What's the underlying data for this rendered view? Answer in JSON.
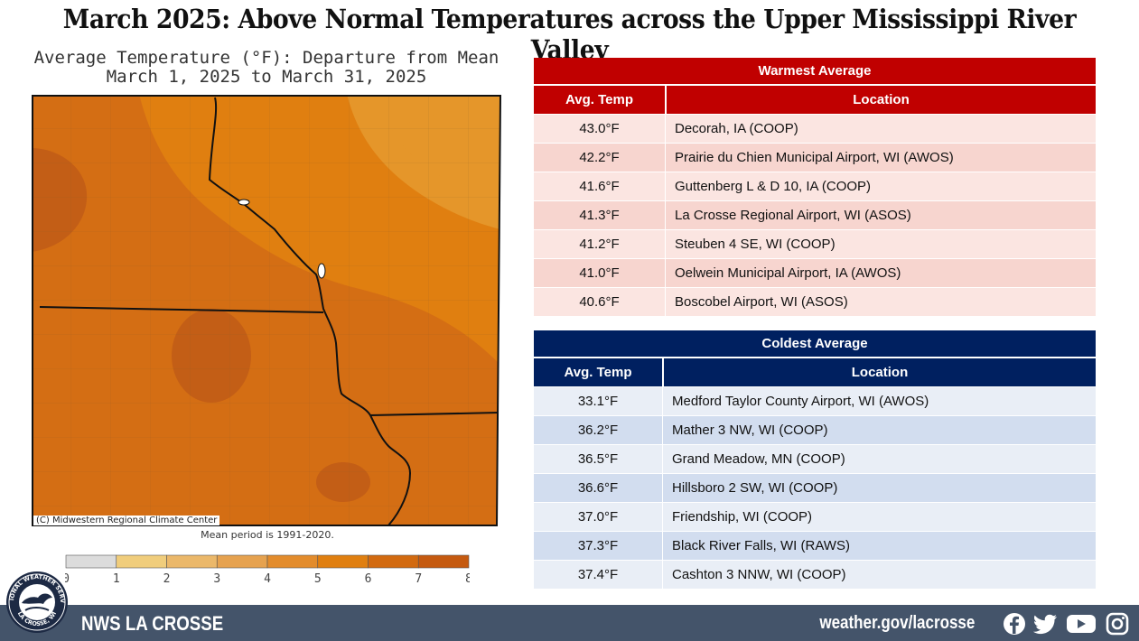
{
  "title": "March 2025:  Above Normal Temperatures across the Upper Mississippi River Valley",
  "map": {
    "title_line1": "Average Temperature (°F): Departure from Mean",
    "title_line2": "March 1, 2025 to March 31, 2025",
    "copyright": "(C) Midwestern Regional Climate Center",
    "mean_period": "Mean period is 1991-2020.",
    "legend": {
      "ticks": [
        "0",
        "1",
        "2",
        "3",
        "4",
        "5",
        "6",
        "7",
        "8"
      ],
      "colors": [
        "#dcdcdc",
        "#f0cd7c",
        "#ebb86a",
        "#e6a24f",
        "#e38c2c",
        "#e07f10",
        "#d26a10",
        "#c55a10"
      ]
    },
    "fill_colors": {
      "light": "#e5962a",
      "base": "#e07f10",
      "mid": "#d46e14",
      "dark": "#c35e16"
    }
  },
  "warmest": {
    "banner": "Warmest  Average",
    "col_temp": "Avg. Temp",
    "col_loc": "Location",
    "rows": [
      {
        "temp": "43.0°F",
        "loc": "Decorah, IA (COOP)"
      },
      {
        "temp": "42.2°F",
        "loc": "Prairie du Chien Municipal Airport, WI (AWOS)"
      },
      {
        "temp": "41.6°F",
        "loc": "Guttenberg L & D 10, IA (COOP)"
      },
      {
        "temp": "41.3°F",
        "loc": "La Crosse Regional Airport, WI (ASOS)"
      },
      {
        "temp": "41.2°F",
        "loc": "Steuben 4 SE, WI (COOP)"
      },
      {
        "temp": "41.0°F",
        "loc": "Oelwein Municipal Airport, IA (AWOS)"
      },
      {
        "temp": "40.6°F",
        "loc": "Boscobel Airport, WI (ASOS)"
      }
    ]
  },
  "coldest": {
    "banner": "Coldest Average",
    "col_temp": "Avg. Temp",
    "col_loc": "Location",
    "rows": [
      {
        "temp": "33.1°F",
        "loc": "Medford Taylor County Airport, WI (AWOS)"
      },
      {
        "temp": "36.2°F",
        "loc": "Mather 3 NW, WI (COOP)"
      },
      {
        "temp": "36.5°F",
        "loc": "Grand Meadow, MN (COOP)"
      },
      {
        "temp": "36.6°F",
        "loc": "Hillsboro 2 SW, WI (COOP)"
      },
      {
        "temp": "37.0°F",
        "loc": "Friendship, WI (COOP)"
      },
      {
        "temp": "37.3°F",
        "loc": "Black River Falls, WI (RAWS)"
      },
      {
        "temp": "37.4°F",
        "loc": "Cashton 3 NNW, WI (COOP)"
      }
    ]
  },
  "footer": {
    "office": "NWS LA CROSSE",
    "url": "weather.gov/lacrosse",
    "logo_text_top": "NATIONAL WEATHER SERVICE",
    "logo_text_bottom": "LA CROSSE, WI",
    "icons": [
      "facebook-icon",
      "twitter-icon",
      "youtube-icon",
      "instagram-icon"
    ]
  }
}
